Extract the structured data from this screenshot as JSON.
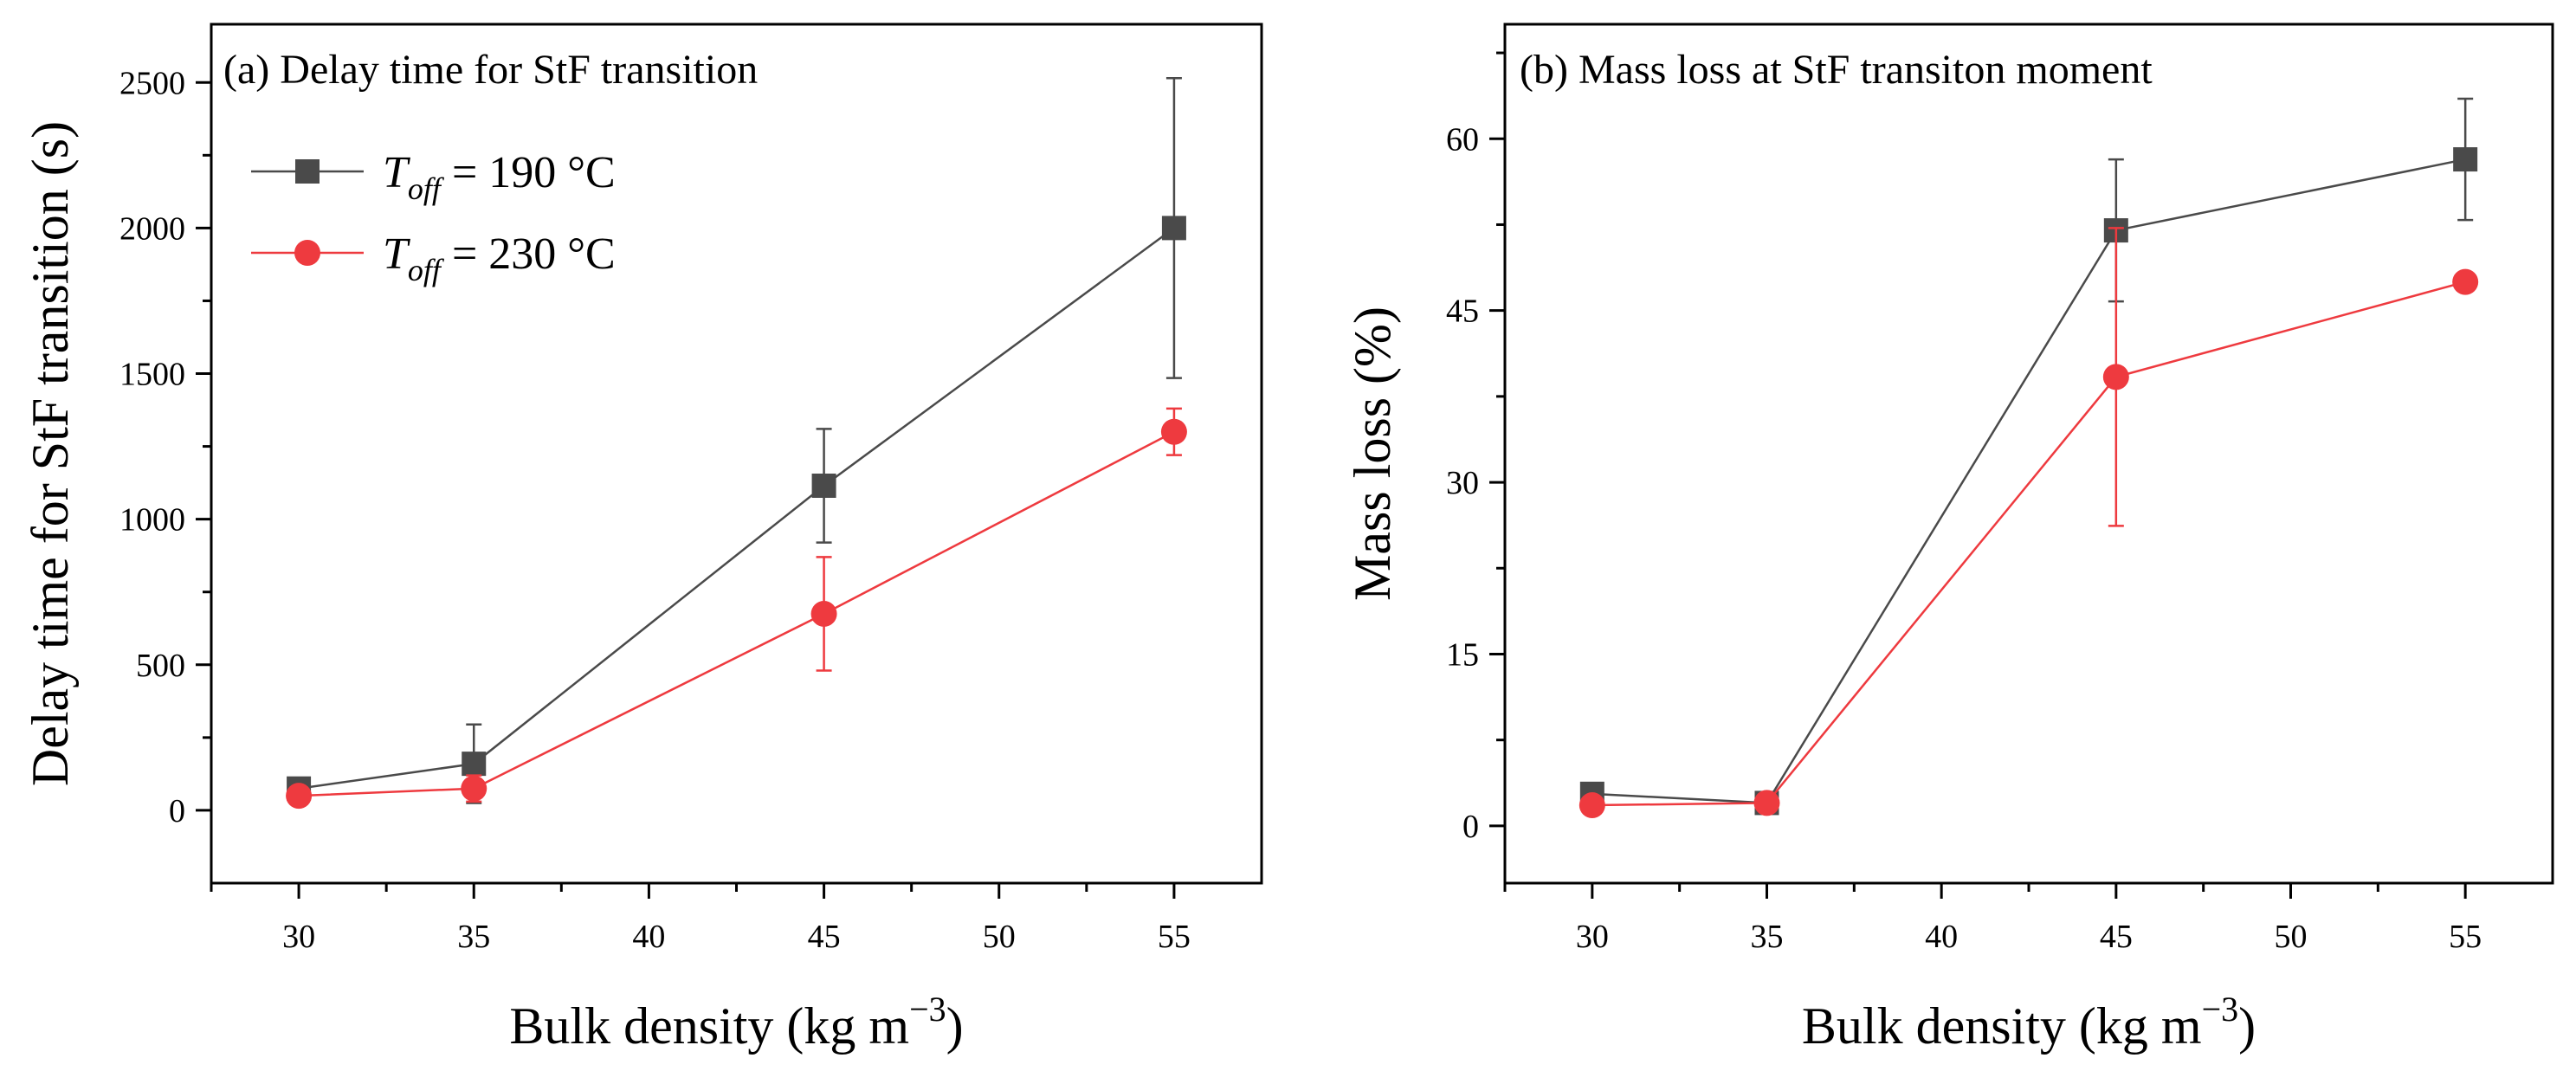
{
  "chart_data": [
    {
      "type": "line",
      "title": "(a) Delay time for StF transition",
      "xlabel": "Bulk density (kg m",
      "xlabel_sup": "−3",
      "xlabel_close": ")",
      "ylabel": "Delay time for StF transition (s)",
      "xlim": [
        27.5,
        57.5
      ],
      "ylim": [
        -250,
        2700
      ],
      "xticks": [
        30,
        35,
        40,
        45,
        50,
        55
      ],
      "xtick_labels": [
        "30",
        "35",
        "40",
        "45",
        "50",
        "55"
      ],
      "yticks": [
        0,
        500,
        1000,
        1500,
        2000,
        2500
      ],
      "ytick_labels": [
        "0",
        "500",
        "1000",
        "1500",
        "2000",
        "2500"
      ],
      "grid": false,
      "legend_position": "top-left",
      "series": [
        {
          "name": "T_off = 190 °C",
          "legend_var": "T",
          "legend_sub": "off",
          "legend_rest": " = 190 °C",
          "color": "#4a4a4a",
          "marker": "square",
          "x": [
            30,
            35,
            45,
            55
          ],
          "values": [
            75,
            160,
            1115,
            2000
          ],
          "err_low": [
            0,
            135,
            195,
            515
          ],
          "err_high": [
            0,
            135,
            195,
            515
          ]
        },
        {
          "name": "T_off = 230 °C",
          "legend_var": "T",
          "legend_sub": "off",
          "legend_rest": " = 230 °C",
          "color": "#ee3a3f",
          "marker": "circle",
          "x": [
            30,
            35,
            45,
            55
          ],
          "values": [
            50,
            75,
            675,
            1300
          ],
          "err_low": [
            0,
            45,
            195,
            80
          ],
          "err_high": [
            0,
            45,
            195,
            80
          ]
        }
      ]
    },
    {
      "type": "line",
      "title": "(b) Mass loss at StF transiton moment",
      "xlabel": "Bulk density (kg m",
      "xlabel_sup": "−3",
      "xlabel_close": ")",
      "ylabel": "Mass loss  (%)",
      "xlim": [
        27.5,
        57.5
      ],
      "ylim": [
        -5,
        70
      ],
      "xticks": [
        30,
        35,
        40,
        45,
        50,
        55
      ],
      "xtick_labels": [
        "30",
        "35",
        "40",
        "45",
        "50",
        "55"
      ],
      "yticks": [
        0,
        15,
        30,
        45,
        60
      ],
      "ytick_labels": [
        "0",
        "15",
        "30",
        "45",
        "60"
      ],
      "grid": false,
      "series": [
        {
          "name": "T_off = 190 °C",
          "color": "#4a4a4a",
          "marker": "square",
          "x": [
            30,
            35,
            45,
            55
          ],
          "values": [
            2.8,
            2.0,
            52.0,
            58.2
          ],
          "err_low": [
            0,
            0,
            6.2,
            5.3
          ],
          "err_high": [
            0,
            0,
            6.2,
            5.3
          ]
        },
        {
          "name": "T_off = 230 °C",
          "color": "#ee3a3f",
          "marker": "circle",
          "x": [
            30,
            35,
            45,
            55
          ],
          "values": [
            1.8,
            2.0,
            39.2,
            47.5
          ],
          "err_low": [
            0,
            0,
            13.0,
            0.8
          ],
          "err_high": [
            0,
            0,
            13.0,
            0.8
          ]
        }
      ]
    }
  ]
}
